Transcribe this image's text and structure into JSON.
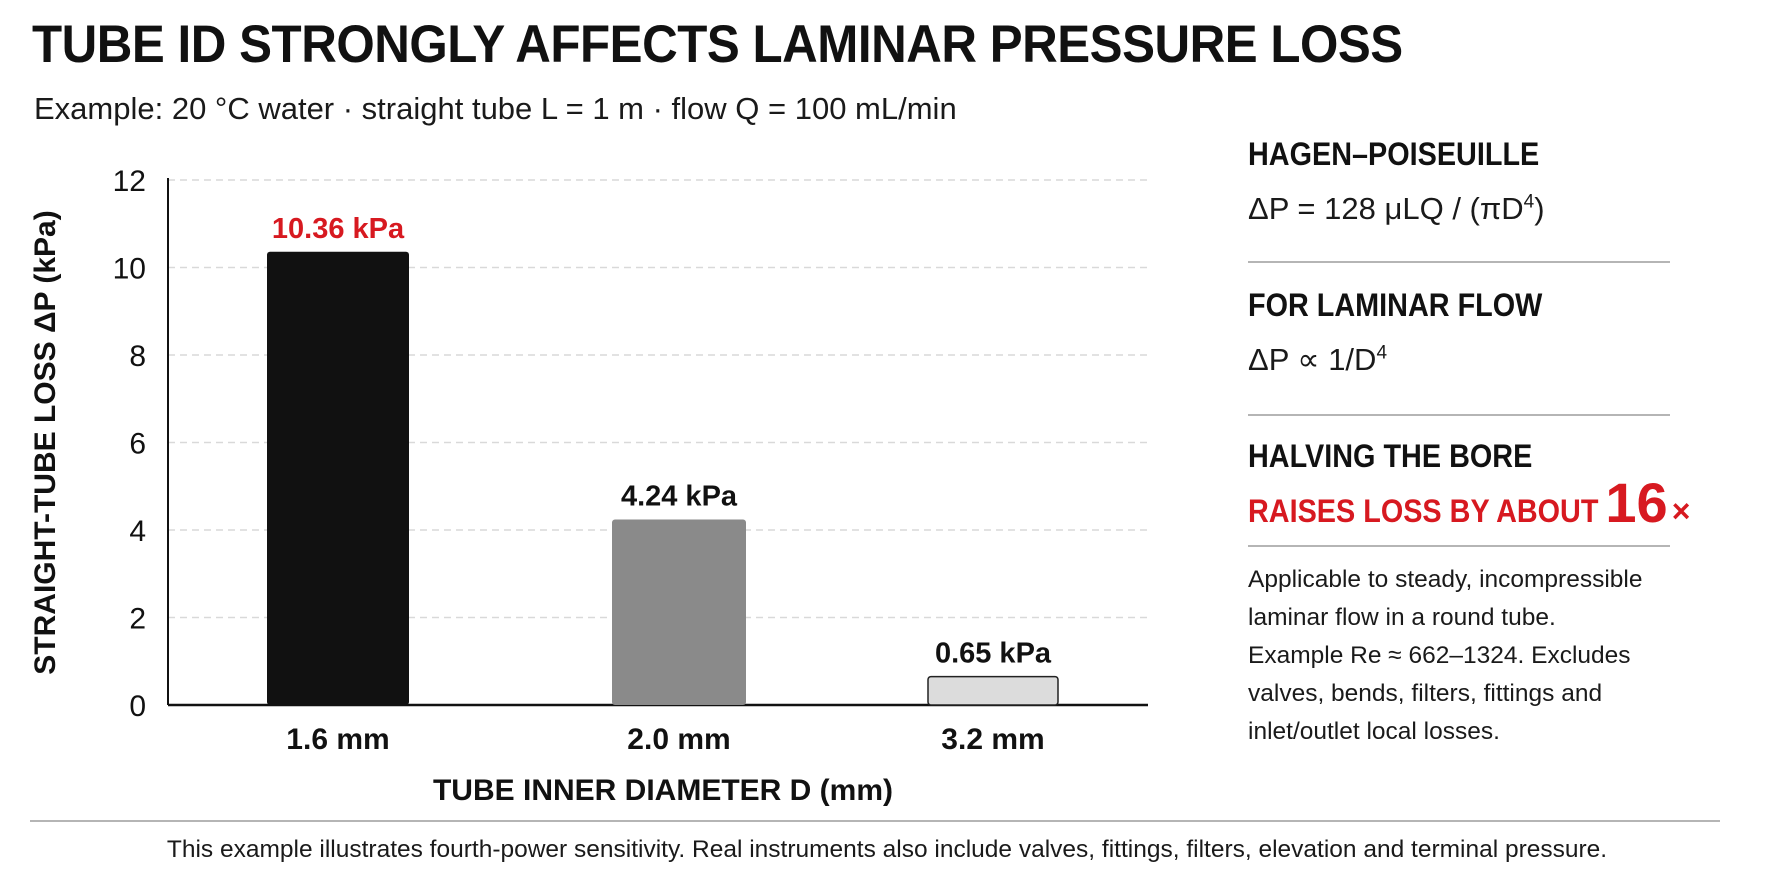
{
  "title": "TUBE ID STRONGLY AFFECTS LAMINAR PRESSURE LOSS",
  "subtitle": "Example: 20 °C water · straight tube L = 1 m · flow Q = 100 mL/min",
  "colors": {
    "accent_red": "#d71920",
    "bar_1": "#111111",
    "bar_2": "#8a8a8a",
    "bar_3": "#dcdcdc",
    "gridline": "#d9d9d9",
    "divider": "#b5b5b5"
  },
  "chart_data": {
    "type": "bar",
    "categories": [
      "1.6 mm",
      "2.0 mm",
      "3.2 mm"
    ],
    "values": [
      10.36,
      4.24,
      0.65
    ],
    "data_labels": [
      "10.36 kPa",
      "4.24 kPa",
      "0.65 kPa"
    ],
    "xlabel": "TUBE INNER DIAMETER  D  (mm)",
    "ylabel": "STRAIGHT-TUBE LOSS  ΔP  (kPa)",
    "ylim": [
      0,
      12
    ],
    "yticks": [
      0,
      2,
      4,
      6,
      8,
      10,
      12
    ],
    "grid": true,
    "grid_style": "dashed horizontal",
    "highlight_label_color": "#d71920"
  },
  "panel": {
    "section1_title": "HAGEN–POISEUILLE",
    "section1_formula_main": "ΔP = 128 μLQ / (πD",
    "section1_formula_exp": "4",
    "section1_formula_tail": ")",
    "section2_title": "FOR LAMINAR FLOW",
    "section2_formula_main": "ΔP ∝ 1/D",
    "section2_formula_exp": "4",
    "section3_line1": "HALVING THE BORE",
    "section3_line2": "RAISES LOSS BY ABOUT",
    "section3_big": "16",
    "section3_times": "×",
    "note_lines": [
      "Applicable to steady, incompressible",
      "laminar flow in a round tube.",
      "Example Re ≈ 662–1324. Excludes",
      "valves, bends, filters, fittings and",
      "inlet/outlet local losses."
    ]
  },
  "footer": "This example illustrates fourth-power sensitivity. Real instruments also include valves, fittings, filters, elevation and terminal pressure."
}
